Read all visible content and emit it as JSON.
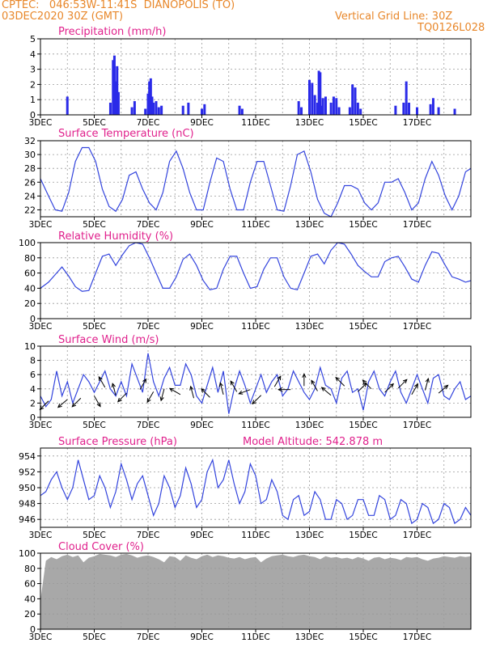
{
  "header": {
    "line1": "CPTEC:   046:53W-11:41S  DIANOPOLIS (TO)",
    "line2": "03DEC2020 30Z (GMT)",
    "grid_note": "Vertical Grid Line: 30Z",
    "code": "TQ0126L028"
  },
  "colors": {
    "header": "#e8872a",
    "title": "#e0208c",
    "line": "#3344dd",
    "bar": "#2a2ae8",
    "cloud": "#a8a8a8",
    "grid": "#999999"
  },
  "x_axis": {
    "labels": [
      "3DEC",
      "5DEC",
      "7DEC",
      "9DEC",
      "11DEC",
      "13DEC",
      "15DEC",
      "17DEC"
    ],
    "label_days": [
      3,
      5,
      7,
      9,
      11,
      13,
      15,
      17
    ],
    "range_days": [
      3,
      19.0
    ],
    "grid_days": [
      4,
      5,
      6,
      7,
      8,
      9,
      10,
      11,
      12,
      13,
      14,
      15,
      16,
      17,
      18
    ]
  },
  "chart_data": [
    {
      "type": "bar",
      "title": "Precipitation (mm/h)",
      "ylim": [
        0,
        5
      ],
      "yticks": [
        0,
        1,
        2,
        3,
        4,
        5
      ],
      "x_days": [
        4.0,
        5.6,
        5.7,
        5.75,
        5.8,
        5.85,
        5.9,
        6.4,
        6.5,
        6.9,
        7.0,
        7.05,
        7.1,
        7.15,
        7.2,
        7.3,
        7.4,
        7.5,
        8.3,
        8.5,
        9.0,
        9.1,
        10.4,
        10.5,
        12.6,
        12.7,
        13.0,
        13.1,
        13.2,
        13.3,
        13.35,
        13.4,
        13.45,
        13.5,
        13.6,
        13.8,
        13.9,
        14.0,
        14.1,
        14.5,
        14.6,
        14.7,
        14.8,
        14.9,
        16.2,
        16.5,
        16.6,
        16.7,
        17.0,
        17.5,
        17.6,
        17.8,
        18.4
      ],
      "values": [
        1.2,
        0.8,
        3.6,
        3.9,
        2.2,
        3.2,
        1.5,
        0.5,
        0.9,
        0.4,
        1.4,
        2.2,
        2.4,
        1.2,
        0.8,
        0.9,
        0.5,
        0.6,
        0.6,
        0.8,
        0.4,
        0.7,
        0.6,
        0.4,
        0.9,
        0.5,
        2.3,
        2.1,
        1.3,
        0.8,
        2.9,
        2.8,
        0.6,
        1.1,
        1.2,
        0.8,
        1.2,
        1.1,
        0.5,
        0.5,
        2.0,
        1.8,
        0.8,
        0.4,
        0.6,
        0.8,
        2.2,
        0.8,
        0.5,
        0.7,
        1.1,
        0.5,
        0.4
      ]
    },
    {
      "type": "line",
      "title": "Surface Temperature (nC)",
      "ylim": [
        21,
        32
      ],
      "yticks": [
        22,
        24,
        26,
        28,
        30,
        32
      ],
      "x_days": [
        3.0,
        3.3,
        3.55,
        3.8,
        4.05,
        4.3,
        4.55,
        4.8,
        5.05,
        5.3,
        5.55,
        5.8,
        6.05,
        6.3,
        6.55,
        6.8,
        7.05,
        7.3,
        7.55,
        7.8,
        8.05,
        8.3,
        8.55,
        8.8,
        9.05,
        9.3,
        9.55,
        9.8,
        10.05,
        10.3,
        10.55,
        10.8,
        11.05,
        11.3,
        11.55,
        11.8,
        12.05,
        12.3,
        12.55,
        12.8,
        13.05,
        13.3,
        13.55,
        13.8,
        14.05,
        14.3,
        14.55,
        14.8,
        15.05,
        15.3,
        15.55,
        15.8,
        16.05,
        16.3,
        16.55,
        16.8,
        17.05,
        17.3,
        17.55,
        17.8,
        18.05,
        18.3,
        18.55,
        18.8,
        19.0
      ],
      "values": [
        26.5,
        24,
        22,
        21.8,
        24.5,
        29,
        31,
        31,
        29,
        25,
        22.5,
        21.8,
        23.5,
        27,
        27.5,
        25,
        23,
        22,
        24.5,
        29,
        30.5,
        28,
        24.5,
        22,
        22,
        26,
        29.5,
        29,
        25,
        22,
        22,
        26,
        29,
        29,
        25.5,
        22,
        21.8,
        25.5,
        30,
        30.5,
        27.5,
        23.5,
        21.5,
        21,
        23,
        25.5,
        25.5,
        25,
        23,
        22,
        23,
        26,
        26,
        26.5,
        24.5,
        22,
        23,
        26.5,
        29,
        27,
        24,
        22,
        24,
        27.5,
        28
      ]
    },
    {
      "type": "line",
      "title": "Relative Humidity (%)",
      "ylim": [
        0,
        100
      ],
      "yticks": [
        0,
        20,
        40,
        60,
        80,
        100
      ],
      "x_days": [
        3.0,
        3.3,
        3.55,
        3.8,
        4.05,
        4.3,
        4.55,
        4.8,
        5.05,
        5.3,
        5.55,
        5.8,
        6.05,
        6.3,
        6.55,
        6.8,
        7.05,
        7.3,
        7.55,
        7.8,
        8.05,
        8.3,
        8.55,
        8.8,
        9.05,
        9.3,
        9.55,
        9.8,
        10.05,
        10.3,
        10.55,
        10.8,
        11.05,
        11.3,
        11.55,
        11.8,
        12.05,
        12.3,
        12.55,
        12.8,
        13.05,
        13.3,
        13.55,
        13.8,
        14.05,
        14.3,
        14.55,
        14.8,
        15.05,
        15.3,
        15.55,
        15.8,
        16.05,
        16.3,
        16.55,
        16.8,
        17.05,
        17.3,
        17.55,
        17.8,
        18.05,
        18.3,
        18.55,
        18.8,
        19.0
      ],
      "values": [
        40,
        48,
        58,
        68,
        56,
        42,
        36,
        37,
        60,
        82,
        85,
        70,
        84,
        96,
        100,
        98,
        80,
        60,
        40,
        40,
        55,
        78,
        85,
        70,
        50,
        38,
        40,
        65,
        82,
        82,
        60,
        40,
        42,
        65,
        80,
        80,
        55,
        40,
        38,
        60,
        82,
        85,
        72,
        90,
        100,
        98,
        85,
        70,
        62,
        55,
        55,
        75,
        80,
        82,
        68,
        52,
        48,
        70,
        88,
        86,
        70,
        55,
        52,
        48,
        50
      ]
    },
    {
      "type": "line",
      "title": "Surface Wind (m/s)",
      "ylim": [
        0,
        10
      ],
      "yticks": [
        0,
        2,
        4,
        6,
        8,
        10
      ],
      "x_days": [
        3.0,
        3.2,
        3.4,
        3.6,
        3.8,
        4.0,
        4.2,
        4.4,
        4.6,
        4.8,
        5.0,
        5.2,
        5.4,
        5.6,
        5.8,
        6.0,
        6.2,
        6.4,
        6.6,
        6.8,
        7.0,
        7.2,
        7.4,
        7.6,
        7.8,
        8.0,
        8.2,
        8.4,
        8.6,
        8.8,
        9.0,
        9.2,
        9.4,
        9.6,
        9.8,
        10.0,
        10.2,
        10.4,
        10.6,
        10.8,
        11.0,
        11.2,
        11.4,
        11.6,
        11.8,
        12.0,
        12.2,
        12.4,
        12.6,
        12.8,
        13.0,
        13.2,
        13.4,
        13.6,
        13.8,
        14.0,
        14.2,
        14.4,
        14.6,
        14.8,
        15.0,
        15.2,
        15.4,
        15.6,
        15.8,
        16.0,
        16.2,
        16.4,
        16.6,
        16.8,
        17.0,
        17.2,
        17.4,
        17.6,
        17.8,
        18.0,
        18.2,
        18.4,
        18.6,
        18.8,
        19.0
      ],
      "values": [
        3,
        1.5,
        2.5,
        6.5,
        3,
        5,
        2,
        4,
        6,
        5,
        3.5,
        5,
        6.5,
        4,
        3,
        5,
        3,
        7.5,
        5.5,
        3.5,
        9,
        5,
        3,
        5.5,
        7,
        4.5,
        4.5,
        7.5,
        6,
        3,
        2,
        4.5,
        7,
        3.5,
        6.5,
        0.5,
        4,
        6.5,
        4.5,
        2,
        4,
        6,
        3.5,
        5,
        6,
        3,
        4,
        6.5,
        5,
        3.5,
        2.5,
        4,
        7,
        4.5,
        4,
        2,
        5.5,
        6.5,
        3.5,
        4,
        1,
        5,
        6.5,
        4,
        3,
        5,
        6.5,
        3.5,
        2,
        4,
        6,
        4,
        2,
        5.5,
        6,
        3,
        2.5,
        4,
        5,
        2.5,
        3
      ],
      "barbs_days": [
        3.3,
        4.0,
        4.5,
        5.0,
        5.4,
        5.8,
        6.2,
        6.7,
        7.2,
        7.6,
        8.2,
        8.7,
        9.3,
        9.8,
        10.3,
        10.8,
        11.2,
        11.7,
        12.3,
        12.8,
        13.3,
        13.8,
        14.3,
        14.8,
        15.3,
        15.8,
        16.3,
        16.8,
        17.3,
        17.8
      ],
      "barbs_speed": [
        2.3,
        2.5,
        2.7,
        3.0,
        4.2,
        3.1,
        3.4,
        3.9,
        3.6,
        4.0,
        3.2,
        2.7,
        2.8,
        3.2,
        3.6,
        3.9,
        3.1,
        4.3,
        3.9,
        4.4,
        3.7,
        3.1,
        4.4,
        3.6,
        4.0,
        3.5,
        4.1,
        3.2,
        3.8,
        3.4
      ],
      "barbs_dir_deg": [
        225,
        220,
        225,
        300,
        120,
        105,
        225,
        60,
        240,
        255,
        150,
        105,
        135,
        105,
        120,
        200,
        225,
        60,
        180,
        90,
        120,
        140,
        135,
        45,
        135,
        45,
        45,
        60,
        75,
        40
      ]
    },
    {
      "type": "line",
      "title": "Surface Pressure (hPa)",
      "annotation": "Model Altitude: 542.878  m",
      "ylim": [
        945,
        955
      ],
      "yticks": [
        946,
        948,
        950,
        952,
        954
      ],
      "x_days": [
        3.0,
        3.2,
        3.4,
        3.6,
        3.8,
        4.0,
        4.2,
        4.4,
        4.6,
        4.8,
        5.0,
        5.2,
        5.4,
        5.6,
        5.8,
        6.0,
        6.2,
        6.4,
        6.6,
        6.8,
        7.0,
        7.2,
        7.4,
        7.6,
        7.8,
        8.0,
        8.2,
        8.4,
        8.6,
        8.8,
        9.0,
        9.2,
        9.4,
        9.6,
        9.8,
        10.0,
        10.2,
        10.4,
        10.6,
        10.8,
        11.0,
        11.2,
        11.4,
        11.6,
        11.8,
        12.0,
        12.2,
        12.4,
        12.6,
        12.8,
        13.0,
        13.2,
        13.4,
        13.6,
        13.8,
        14.0,
        14.2,
        14.4,
        14.6,
        14.8,
        15.0,
        15.2,
        15.4,
        15.6,
        15.8,
        16.0,
        16.2,
        16.4,
        16.6,
        16.8,
        17.0,
        17.2,
        17.4,
        17.6,
        17.8,
        18.0,
        18.2,
        18.4,
        18.6,
        18.8,
        19.0
      ],
      "values": [
        949,
        949.5,
        951,
        952,
        950,
        948.5,
        950,
        953.5,
        951,
        948.5,
        949,
        951.5,
        950,
        947.5,
        949.5,
        953,
        951,
        948.5,
        950.5,
        951.5,
        949,
        946.5,
        948,
        951.5,
        950,
        947.5,
        949,
        952.5,
        950.5,
        947.5,
        948.5,
        952,
        953.5,
        950,
        951,
        953.5,
        950.5,
        948,
        949.5,
        953,
        951.5,
        948,
        948.5,
        951,
        949.5,
        946.5,
        946,
        948.5,
        949,
        946.5,
        947,
        949.5,
        948.5,
        946,
        946,
        948.5,
        948,
        946,
        946.5,
        948.5,
        948.5,
        946.5,
        946.5,
        949,
        948.5,
        946,
        946.5,
        948.5,
        948,
        945.5,
        946,
        948,
        947.5,
        945.5,
        946,
        948,
        947.5,
        945.5,
        946,
        947.5,
        946.5
      ]
    },
    {
      "type": "area",
      "title": "Cloud Cover (%)",
      "ylim": [
        0,
        100
      ],
      "yticks": [
        0,
        20,
        40,
        60,
        80,
        100
      ],
      "x_days": [
        3.0,
        3.2,
        3.4,
        3.6,
        3.8,
        4.0,
        4.2,
        4.4,
        4.6,
        4.8,
        5.0,
        5.2,
        5.4,
        5.6,
        5.8,
        6.0,
        6.2,
        6.4,
        6.6,
        6.8,
        7.0,
        7.2,
        7.4,
        7.6,
        7.8,
        8.0,
        8.2,
        8.4,
        8.6,
        8.8,
        9.0,
        9.2,
        9.4,
        9.6,
        9.8,
        10.0,
        10.2,
        10.4,
        10.6,
        10.8,
        11.0,
        11.2,
        11.4,
        11.6,
        11.8,
        12.0,
        12.2,
        12.4,
        12.6,
        12.8,
        13.0,
        13.2,
        13.4,
        13.6,
        13.8,
        14.0,
        14.2,
        14.4,
        14.6,
        14.8,
        15.0,
        15.2,
        15.4,
        15.6,
        15.8,
        16.0,
        16.2,
        16.4,
        16.6,
        16.8,
        17.0,
        17.2,
        17.4,
        17.6,
        17.8,
        18.0,
        18.2,
        18.4,
        18.6,
        18.8,
        19.0
      ],
      "values": [
        38,
        90,
        95,
        92,
        96,
        98,
        95,
        97,
        88,
        94,
        96,
        99,
        98,
        97,
        95,
        98,
        99,
        97,
        94,
        96,
        97,
        95,
        92,
        88,
        96,
        95,
        90,
        97,
        94,
        92,
        96,
        98,
        95,
        97,
        96,
        94,
        93,
        95,
        92,
        94,
        95,
        88,
        93,
        96,
        97,
        98,
        96,
        95,
        97,
        98,
        96,
        95,
        92,
        96,
        94,
        95,
        93,
        94,
        92,
        95,
        93,
        90,
        94,
        95,
        92,
        94,
        93,
        91,
        95,
        94,
        95,
        92,
        90,
        93,
        94,
        96,
        95,
        94,
        96,
        95,
        96
      ]
    }
  ]
}
